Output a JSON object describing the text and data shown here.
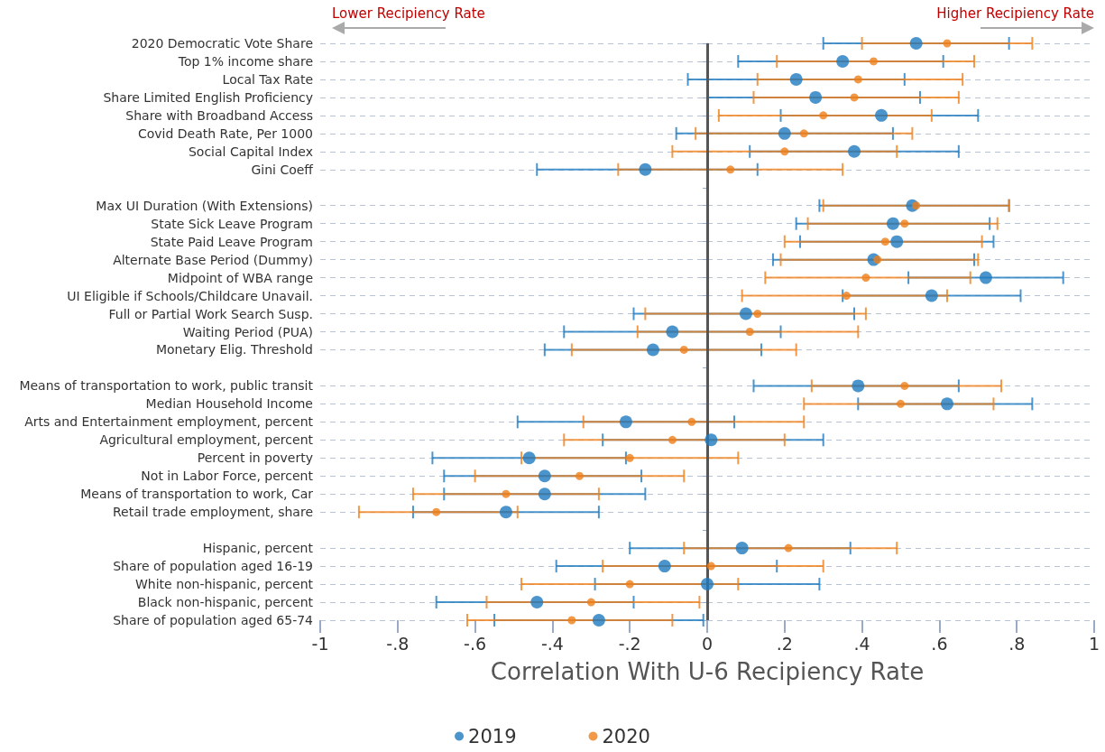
{
  "chart_data": {
    "type": "scatter",
    "orientation": "horizontal",
    "xlabel": "Correlation With U-6 Recipiency Rate",
    "annotations": [
      "Lower Recipiency Rate",
      "Higher Recipiency Rate"
    ],
    "categories": [
      "2020 Democratic Vote Share",
      "Top 1% income share",
      "Local Tax Rate",
      "Share Limited English Proficiency",
      "Share with Broadband Access",
      "Covid Death Rate, Per 1000",
      "Social Capital Index",
      "Gini Coeff",
      null,
      "Max UI Duration (With Extensions)",
      "State Sick Leave Program",
      "State Paid Leave Program",
      "Alternate Base Period (Dummy)",
      "Midpoint of WBA range",
      "UI Eligible if Schools/Childcare Unavail.",
      "Full or Partial Work Search Susp.",
      "Waiting Period (PUA)",
      "Monetary Elig. Threshold",
      null,
      "Means of transportation to work, public transit",
      "Median Household Income",
      "Arts and Entertainment employment, percent",
      "Agricultural employment, percent",
      "Percent in poverty",
      "Not in Labor Force, percent",
      "Means of transportation to work, Car",
      "Retail trade employment, share",
      null,
      "Hispanic, percent",
      "Share of population aged 16-19",
      "White non-hispanic, percent",
      "Black non-hispanic, percent",
      "Share of population aged 65-74"
    ],
    "series": [
      {
        "name": "2019",
        "color": "#1f7bbf",
        "values": [
          0.54,
          0.35,
          0.23,
          0.28,
          0.45,
          0.2,
          0.38,
          -0.16,
          null,
          0.53,
          0.48,
          0.49,
          0.43,
          0.72,
          0.58,
          0.1,
          -0.09,
          -0.14,
          null,
          0.39,
          0.62,
          -0.21,
          0.01,
          -0.46,
          -0.42,
          -0.42,
          -0.52,
          null,
          0.09,
          -0.11,
          0,
          -0.44,
          -0.28
        ],
        "errors": [
          [
            0.3,
            0.78
          ],
          [
            0.08,
            0.61
          ],
          [
            -0.05,
            0.51
          ],
          [
            0,
            0.55
          ],
          [
            0.19,
            0.7
          ],
          [
            -0.08,
            0.48
          ],
          [
            0.11,
            0.65
          ],
          [
            -0.44,
            0.13
          ],
          null,
          [
            0.29,
            0.78
          ],
          [
            0.23,
            0.73
          ],
          [
            0.24,
            0.74
          ],
          [
            0.17,
            0.69
          ],
          [
            0.52,
            0.92
          ],
          [
            0.35,
            0.81
          ],
          [
            -0.19,
            0.38
          ],
          [
            -0.37,
            0.19
          ],
          [
            -0.42,
            0.14
          ],
          null,
          [
            0.12,
            0.65
          ],
          [
            0.39,
            0.84
          ],
          [
            -0.49,
            0.07
          ],
          [
            -0.27,
            0.3
          ],
          [
            -0.71,
            -0.21
          ],
          [
            -0.68,
            -0.17
          ],
          [
            -0.68,
            -0.16
          ],
          [
            -0.76,
            -0.28
          ],
          null,
          [
            -0.2,
            0.37
          ],
          [
            -0.39,
            0.18
          ],
          [
            -0.29,
            0.29
          ],
          [
            -0.7,
            -0.19
          ],
          [
            -0.55,
            -0.01
          ]
        ]
      },
      {
        "name": "2020",
        "color": "#ef7f1a",
        "values": [
          0.62,
          0.43,
          0.39,
          0.38,
          0.3,
          0.25,
          0.2,
          0.06,
          null,
          0.54,
          0.51,
          0.46,
          0.44,
          0.41,
          0.36,
          0.13,
          0.11,
          -0.06,
          null,
          0.51,
          0.5,
          -0.04,
          -0.09,
          -0.2,
          -0.33,
          -0.52,
          -0.7,
          null,
          0.21,
          0.01,
          -0.2,
          -0.3,
          -0.35
        ],
        "errors": [
          [
            0.4,
            0.84
          ],
          [
            0.18,
            0.69
          ],
          [
            0.13,
            0.66
          ],
          [
            0.12,
            0.65
          ],
          [
            0.03,
            0.58
          ],
          [
            -0.03,
            0.53
          ],
          [
            -0.09,
            0.49
          ],
          [
            -0.23,
            0.35
          ],
          null,
          [
            0.3,
            0.78
          ],
          [
            0.26,
            0.75
          ],
          [
            0.2,
            0.71
          ],
          [
            0.19,
            0.7
          ],
          [
            0.15,
            0.68
          ],
          [
            0.09,
            0.62
          ],
          [
            -0.16,
            0.41
          ],
          [
            -0.18,
            0.39
          ],
          [
            -0.35,
            0.23
          ],
          null,
          [
            0.27,
            0.76
          ],
          [
            0.25,
            0.74
          ],
          [
            -0.32,
            0.25
          ],
          [
            -0.37,
            0.2
          ],
          [
            -0.48,
            0.08
          ],
          [
            -0.6,
            -0.06
          ],
          [
            -0.76,
            -0.28
          ],
          [
            -0.9,
            -0.49
          ],
          null,
          [
            -0.06,
            0.49
          ],
          [
            -0.27,
            0.3
          ],
          [
            -0.48,
            0.08
          ],
          [
            -0.57,
            -0.02
          ],
          [
            -0.62,
            -0.09
          ]
        ]
      }
    ],
    "xlim": [
      -1,
      1
    ],
    "xticks": [
      {
        "value": -1,
        "label": "-1"
      },
      {
        "value": -0.8,
        "label": "-.8"
      },
      {
        "value": -0.6,
        "label": "-.6"
      },
      {
        "value": -0.4,
        "label": "-.4"
      },
      {
        "value": -0.2,
        "label": "-.2"
      },
      {
        "value": 0,
        "label": "0"
      },
      {
        "value": 0.2,
        "label": ".2"
      },
      {
        "value": 0.4,
        "label": ".4"
      },
      {
        "value": 0.6,
        "label": ".6"
      },
      {
        "value": 0.8,
        "label": ".8"
      },
      {
        "value": 1,
        "label": "1"
      }
    ],
    "ref_lines": [
      {
        "axis": "x",
        "value": 0,
        "color": "#555555"
      }
    ],
    "grid": "y",
    "legend": "bottom",
    "marker": "circle"
  }
}
